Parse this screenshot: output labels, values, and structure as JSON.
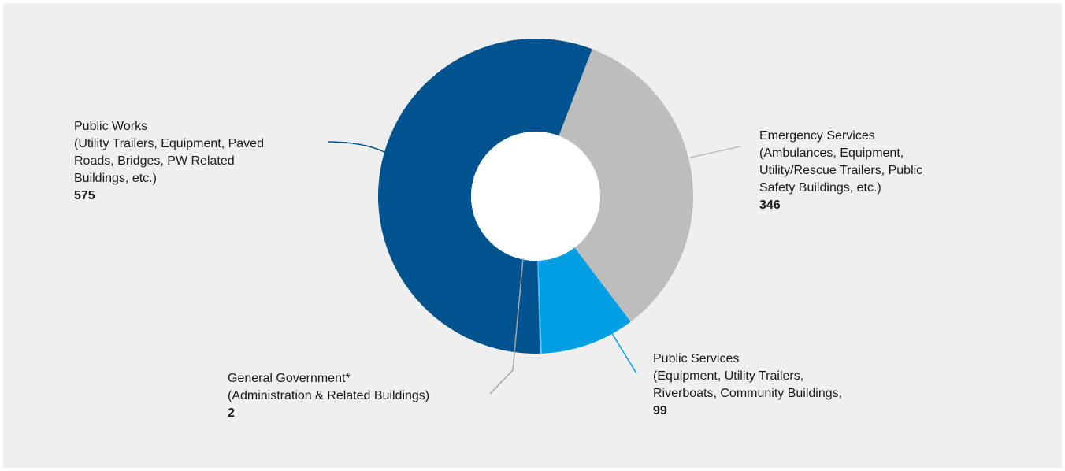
{
  "chart_data": {
    "type": "pie",
    "variant": "donut",
    "title": "",
    "start_angle_deg": 21,
    "clockwise": true,
    "categories": [
      "Emergency Services",
      "Public Services",
      "General Government*",
      "Public Works"
    ],
    "values": [
      346,
      99,
      2,
      575
    ],
    "slices": [
      {
        "name": "Emergency Services",
        "value": 346,
        "color": "#bdbdbd",
        "leader_color": "#bdbdbd",
        "label_lines": [
          "Emergency Services",
          "(Ambulances, Equipment,",
          "Utility/Rescue Trailers, Public",
          "Safety Buildings, etc.)"
        ]
      },
      {
        "name": "Public Services",
        "value": 99,
        "color": "#009fe3",
        "leader_color": "#009fe3",
        "label_lines": [
          "Public Services",
          "(Equipment, Utility Trailers,",
          "Riverboats, Community Buildings,"
        ]
      },
      {
        "name": "General Government*",
        "value": 2,
        "color": "#4fc3f7",
        "leader_color": "#a6a6a6",
        "label_lines": [
          "General Government*",
          "(Administration & Related Buildings)"
        ]
      },
      {
        "name": "Public Works",
        "value": 575,
        "color": "#00538f",
        "leader_color": "#00538f",
        "label_lines": [
          "Public Works",
          "(Utility Trailers, Equipment, Paved",
          "Roads, Bridges, PW Related",
          "Buildings, etc.)"
        ]
      }
    ]
  }
}
